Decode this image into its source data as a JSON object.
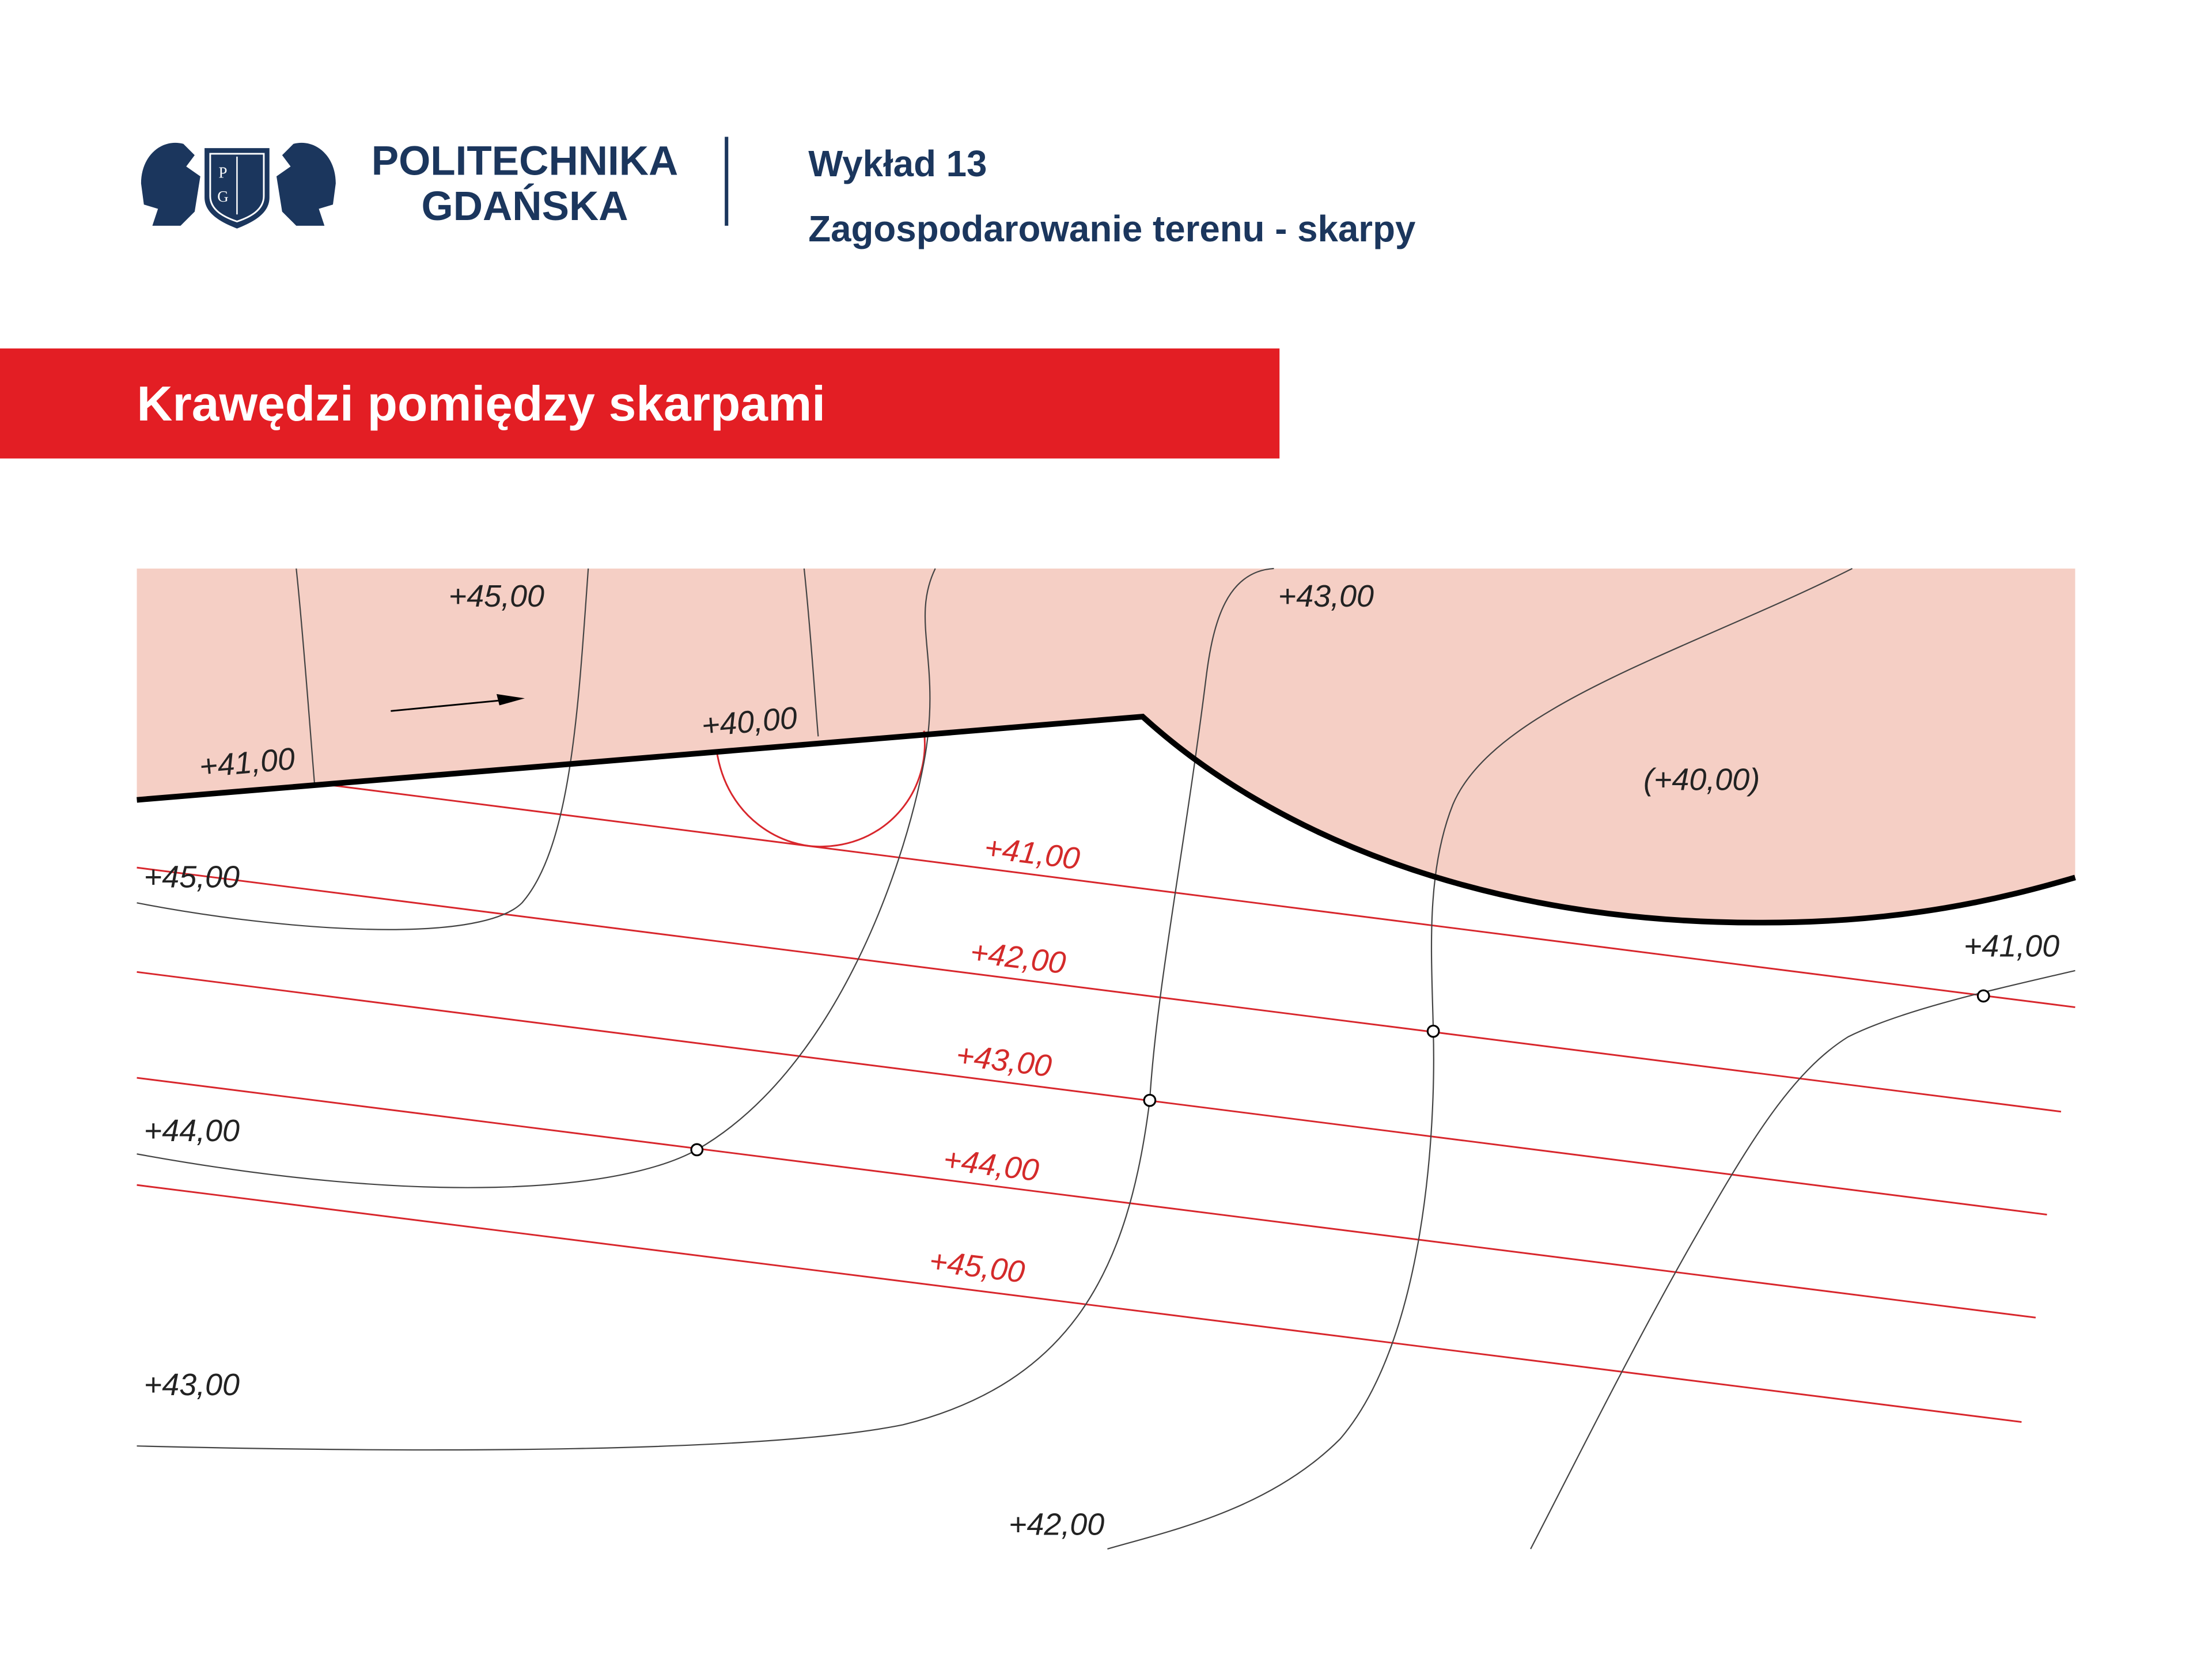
{
  "header": {
    "logo_letters": [
      "P",
      "G"
    ],
    "university": [
      "POLITECHNIKA",
      "GDAŃSKA"
    ],
    "lecture": "Wykład 13",
    "topic": "Zagospodarowanie terenu - skarpy"
  },
  "section_title": "Krawędzi pomiędzy skarpami",
  "drawing": {
    "black_labels": [
      "+45,00",
      "+43,00",
      "+40,00",
      "+41,00",
      "(+40,00)",
      "+45,00",
      "+44,00",
      "+43,00",
      "+42,00",
      "+41,00"
    ],
    "red_labels": [
      "+41,00",
      "+42,00",
      "+43,00",
      "+44,00",
      "+45,00"
    ]
  }
}
